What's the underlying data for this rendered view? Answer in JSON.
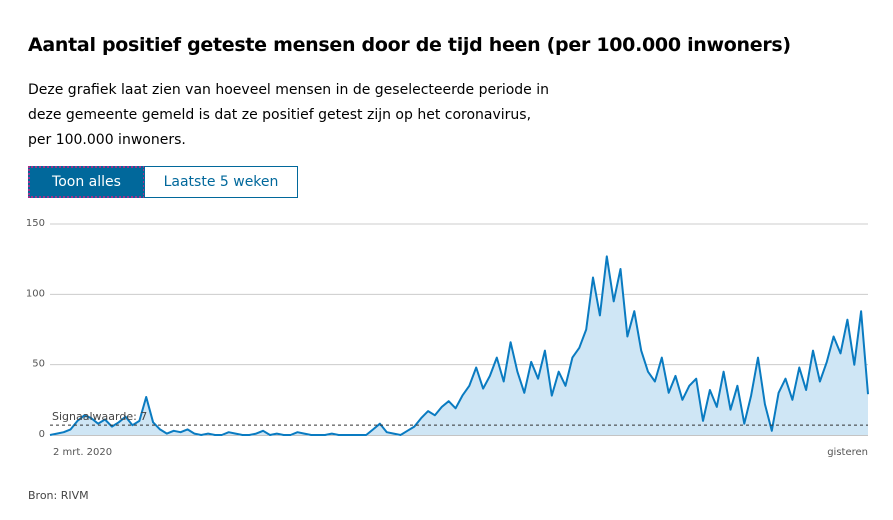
{
  "header": {
    "title": "Aantal positief geteste mensen door de tijd heen (per 100.000 inwoners)",
    "description": "Deze grafiek laat zien van hoeveel mensen in de geselecteerde periode in deze gemeente gemeld is dat ze positief getest zijn op het coronavirus, per 100.000 inwoners."
  },
  "buttons": [
    "Toon alles",
    "Laatste 5 weken"
  ],
  "source": "Bron: RIVM",
  "chart_data": {
    "type": "area",
    "color": "#0a7bc1",
    "fill": "#cfe6f5",
    "categories": [
      "2 mrt. 2020",
      null,
      null,
      null,
      null,
      null,
      null,
      null,
      null,
      null,
      null,
      null,
      null,
      null,
      null,
      null,
      null,
      null,
      null,
      null,
      null,
      null,
      null,
      null,
      null,
      null,
      null,
      null,
      null,
      null,
      null,
      null,
      null,
      null,
      null,
      null,
      null,
      null,
      null,
      null,
      null,
      null,
      null,
      null,
      null,
      null,
      null,
      null,
      null,
      null,
      null,
      null,
      null,
      null,
      null,
      null,
      null,
      null,
      null,
      null,
      null,
      null,
      null,
      null,
      null,
      null,
      null,
      null,
      null,
      null,
      null,
      null,
      null,
      null,
      null,
      null,
      null,
      null,
      null,
      null,
      null,
      null,
      null,
      null,
      null,
      null,
      null,
      null,
      null,
      null,
      null,
      null,
      null,
      null,
      null,
      null,
      null,
      null,
      null,
      null,
      null,
      null,
      null,
      null,
      null,
      null,
      null,
      null,
      null,
      null,
      null,
      null,
      null,
      null,
      null,
      null,
      null,
      null,
      null,
      "gisteren"
    ],
    "values": [
      0,
      1,
      2,
      4,
      10,
      14,
      12,
      8,
      11,
      6,
      9,
      13,
      7,
      10,
      27,
      9,
      4,
      1,
      3,
      2,
      4,
      1,
      0,
      1,
      0,
      0,
      2,
      1,
      0,
      0,
      1,
      3,
      0,
      1,
      0,
      0,
      2,
      1,
      0,
      0,
      0,
      1,
      0,
      0,
      0,
      0,
      0,
      4,
      8,
      2,
      1,
      0,
      3,
      6,
      12,
      17,
      14,
      20,
      24,
      19,
      28,
      35,
      48,
      33,
      42,
      55,
      38,
      66,
      45,
      30,
      52,
      40,
      60,
      28,
      45,
      35,
      55,
      62,
      75,
      112,
      85,
      127,
      95,
      118,
      70,
      88,
      60,
      45,
      38,
      55,
      30,
      42,
      25,
      35,
      40,
      10,
      32,
      20,
      45,
      18,
      35,
      8,
      28,
      55,
      22,
      3,
      30,
      40,
      25,
      48,
      32,
      60,
      38,
      52,
      70,
      58,
      82,
      50,
      88,
      29
    ],
    "ylim": [
      0,
      150
    ],
    "yticks": [
      0,
      50,
      100,
      150
    ],
    "grid": true,
    "threshold": {
      "value": 7,
      "label": "Signaalwaarde: 7"
    }
  }
}
